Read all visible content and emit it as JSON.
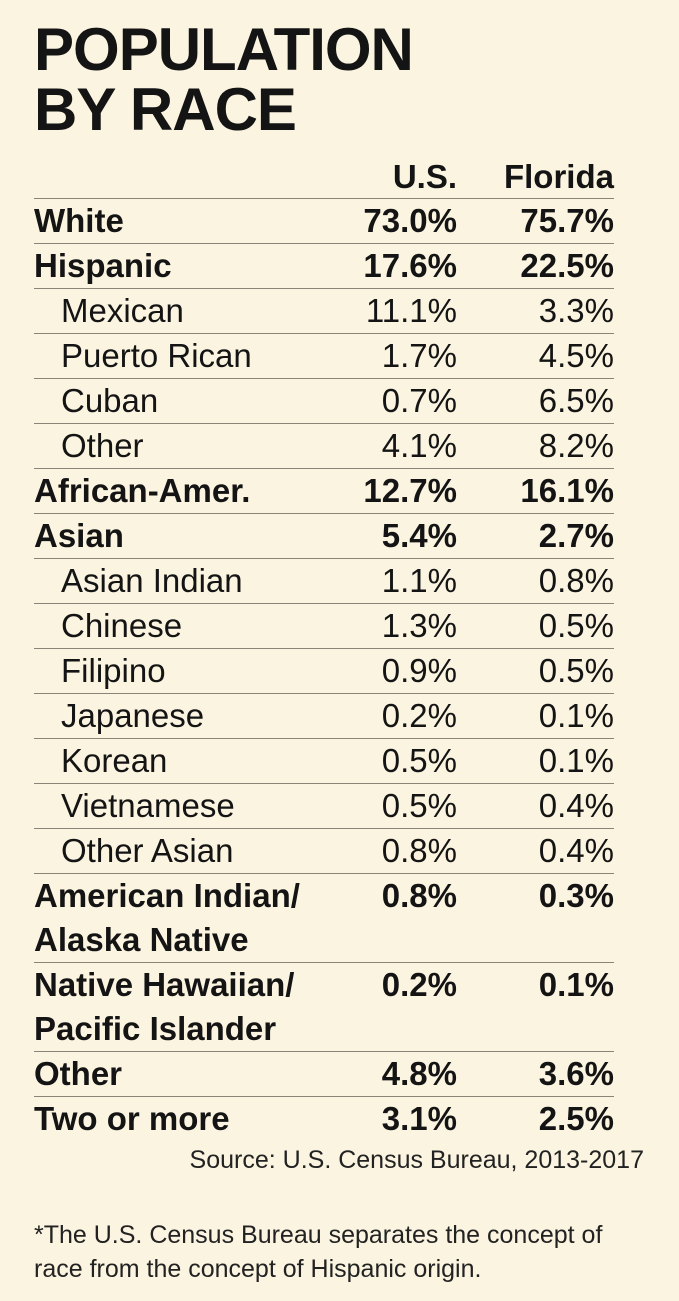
{
  "title_lines": [
    "POPULATION",
    "BY RACE"
  ],
  "columns": [
    "U.S.",
    "Florida"
  ],
  "source": "Source: U.S. Census Bureau, 2013-2017",
  "note": "*The U.S. Census Bureau separates the concept of race from the concept of Hispanic origin.",
  "chart_data": {
    "type": "table",
    "title": "POPULATION BY RACE",
    "columns": [
      "U.S.",
      "Florida"
    ],
    "rows": [
      {
        "label": [
          "White"
        ],
        "level": "main",
        "us": "73.0%",
        "fl": "75.7%"
      },
      {
        "label": [
          "Hispanic"
        ],
        "level": "main",
        "us": "17.6%",
        "fl": "22.5%"
      },
      {
        "label": [
          "Mexican"
        ],
        "level": "sub",
        "us": "11.1%",
        "fl": "3.3%"
      },
      {
        "label": [
          "Puerto Rican"
        ],
        "level": "sub",
        "us": "1.7%",
        "fl": "4.5%"
      },
      {
        "label": [
          "Cuban"
        ],
        "level": "sub",
        "us": "0.7%",
        "fl": "6.5%"
      },
      {
        "label": [
          "Other"
        ],
        "level": "sub",
        "us": "4.1%",
        "fl": "8.2%"
      },
      {
        "label": [
          "African-Amer."
        ],
        "level": "main",
        "us": "12.7%",
        "fl": "16.1%"
      },
      {
        "label": [
          "Asian"
        ],
        "level": "main",
        "us": "5.4%",
        "fl": "2.7%"
      },
      {
        "label": [
          "Asian Indian"
        ],
        "level": "sub",
        "us": "1.1%",
        "fl": "0.8%"
      },
      {
        "label": [
          "Chinese"
        ],
        "level": "sub",
        "us": "1.3%",
        "fl": "0.5%"
      },
      {
        "label": [
          "Filipino"
        ],
        "level": "sub",
        "us": "0.9%",
        "fl": "0.5%"
      },
      {
        "label": [
          "Japanese"
        ],
        "level": "sub",
        "us": "0.2%",
        "fl": "0.1%"
      },
      {
        "label": [
          "Korean"
        ],
        "level": "sub",
        "us": "0.5%",
        "fl": "0.1%"
      },
      {
        "label": [
          "Vietnamese"
        ],
        "level": "sub",
        "us": "0.5%",
        "fl": "0.4%"
      },
      {
        "label": [
          "Other Asian"
        ],
        "level": "sub",
        "us": "0.8%",
        "fl": "0.4%"
      },
      {
        "label": [
          "American Indian/",
          "Alaska Native"
        ],
        "level": "main",
        "us": "0.8%",
        "fl": "0.3%"
      },
      {
        "label": [
          "Native Hawaiian/",
          "Pacific Islander"
        ],
        "level": "main",
        "us": "0.2%",
        "fl": "0.1%"
      },
      {
        "label": [
          "Other"
        ],
        "level": "main",
        "us": "4.8%",
        "fl": "3.6%"
      },
      {
        "label": [
          "Two or more"
        ],
        "level": "main",
        "us": "3.1%",
        "fl": "2.5%"
      }
    ]
  }
}
